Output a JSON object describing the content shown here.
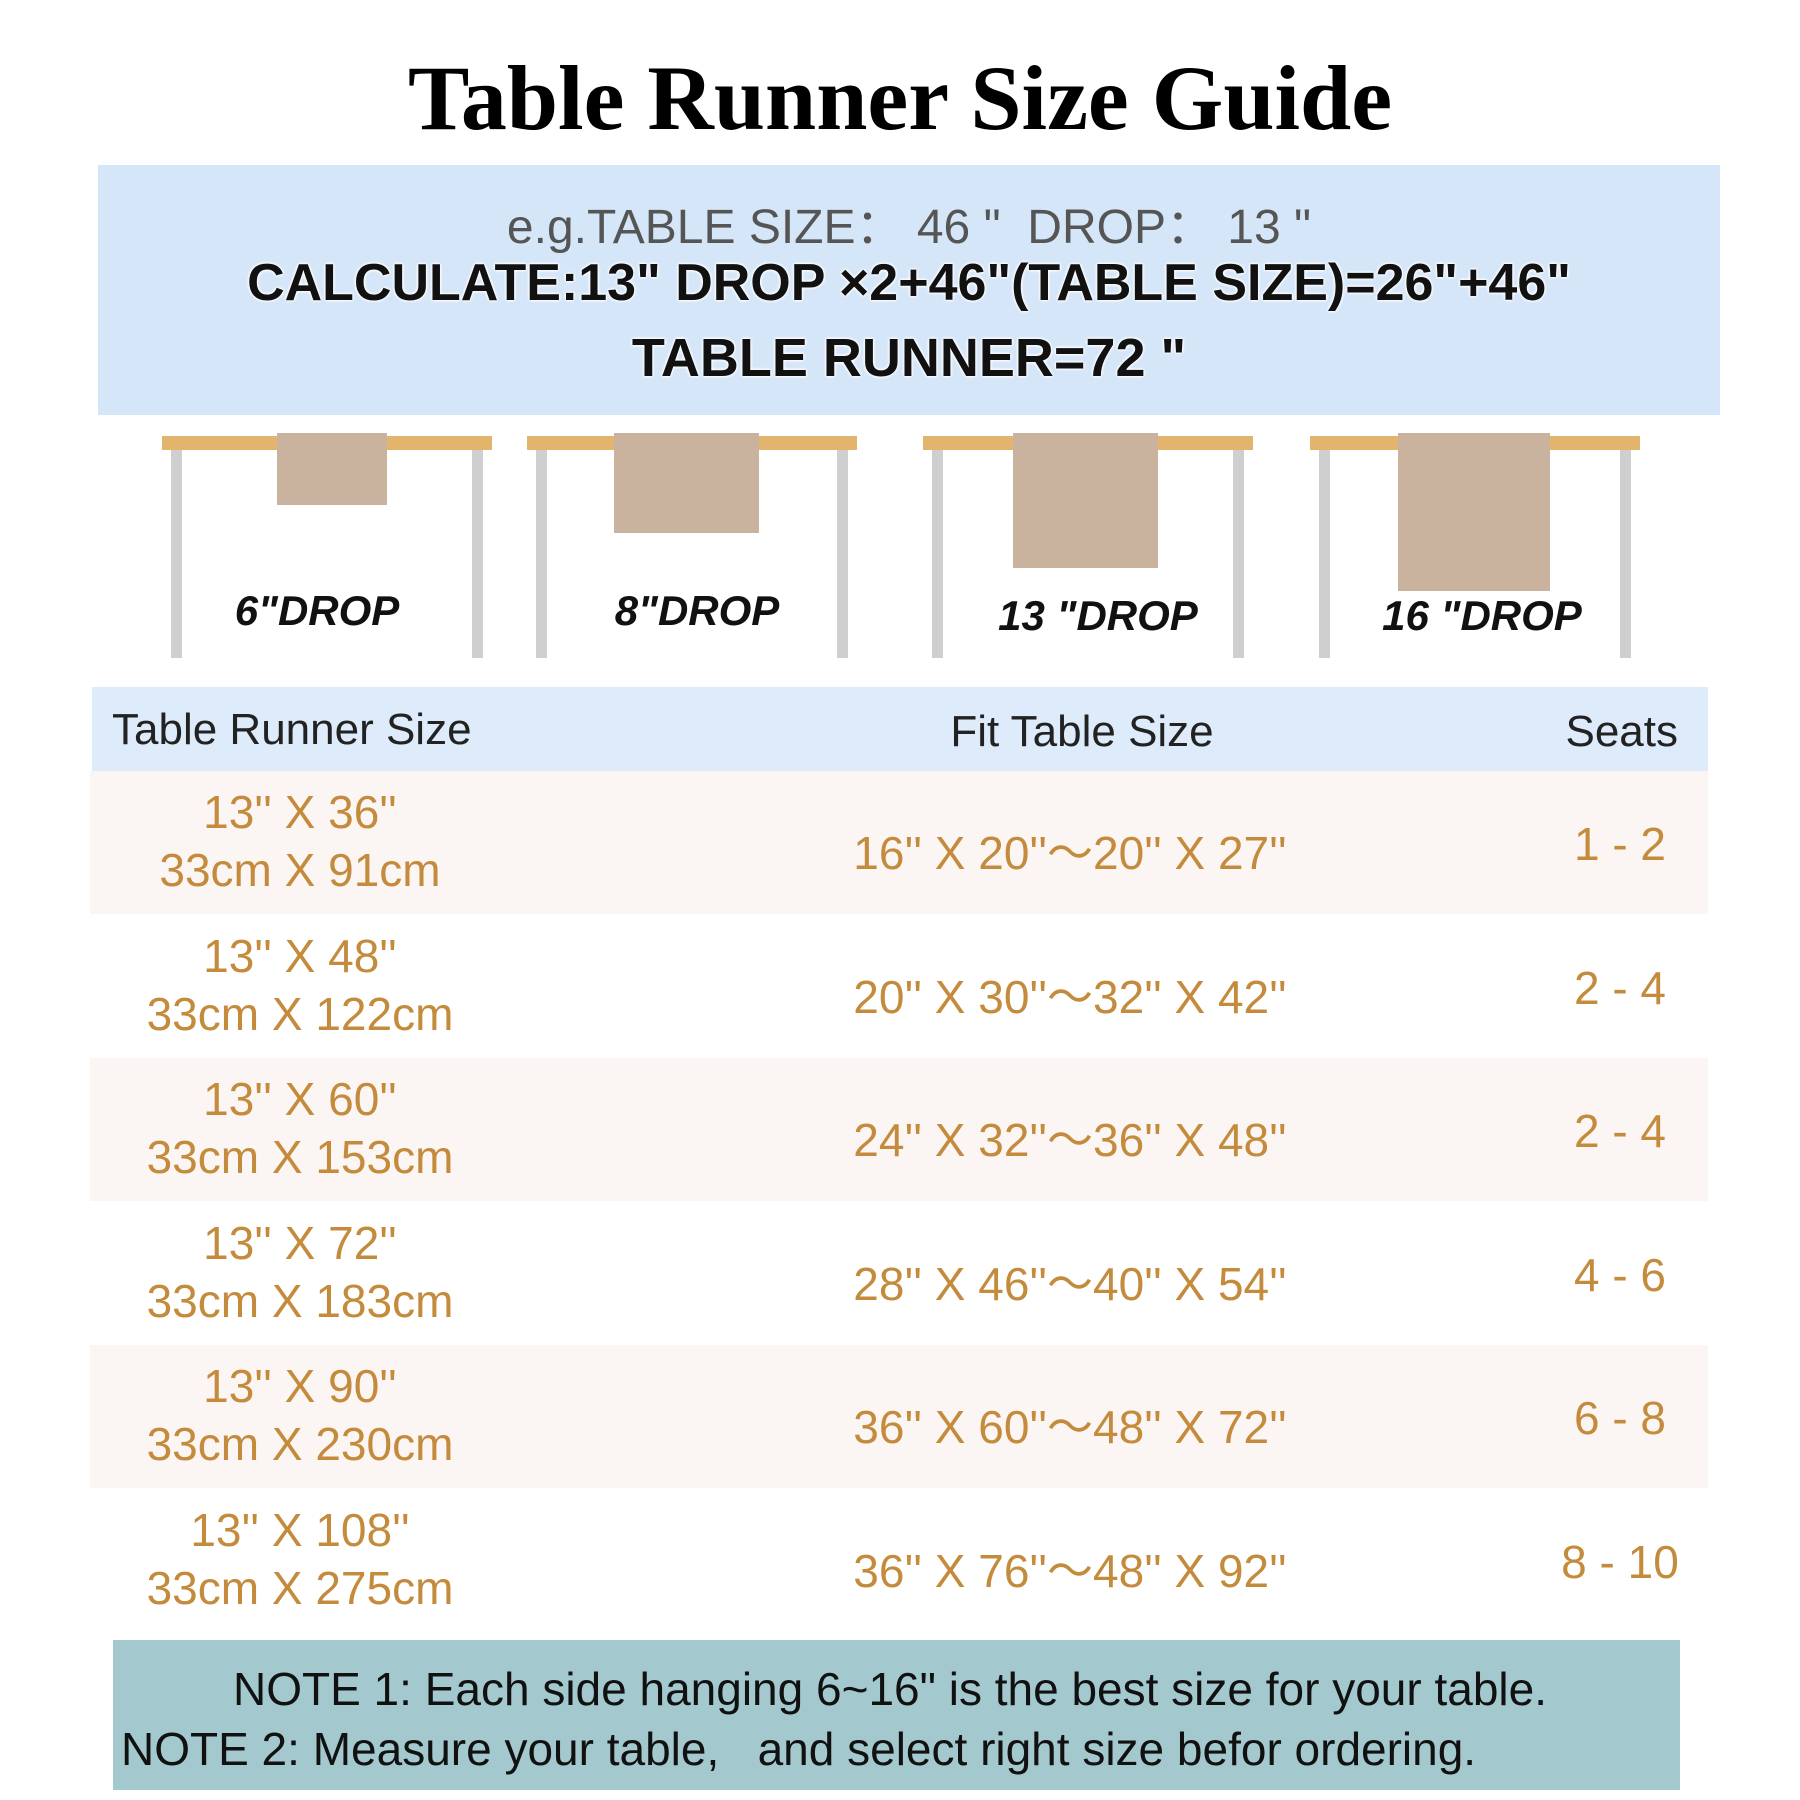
{
  "title": "Table Runner Size Guide",
  "example": {
    "line1": "e.g.TABLE SIZE： 46 \"  DROP： 13 \"",
    "line2": "CALCULATE:13\" DROP ×2+46\"(TABLE SIZE)=26\"+46\"",
    "line3": "TABLE RUNNER=72 \""
  },
  "drops": [
    "6\"DROP",
    "8\"DROP",
    "13 \"DROP",
    "16 \"DROP"
  ],
  "table": {
    "headers": [
      "Table Runner Size",
      "Fit Table Size",
      "Seats"
    ],
    "rows": [
      [
        "13'' X 36''",
        "33cm X 91cm",
        "16'' X 20''～20'' X 27''",
        "1 - 2"
      ],
      [
        "13'' X 48''",
        "33cm X 122cm",
        "20'' X 30''～32'' X 42''",
        "2 - 4"
      ],
      [
        "13'' X 60''",
        "33cm X 153cm",
        "24'' X 32''～36'' X 48''",
        "2 - 4"
      ],
      [
        "13'' X 72''",
        "33cm X 183cm",
        "28'' X 46''～40'' X 54''",
        "4 - 6"
      ],
      [
        "13'' X 90''",
        "33cm X 230cm",
        "36'' X 60''～48'' X 72''",
        "6 - 8"
      ],
      [
        "13'' X 108''",
        "33cm X 275cm",
        "36'' X 76''～48'' X 92''",
        "8 - 10"
      ]
    ]
  },
  "notes": [
    "NOTE 1: Each side hanging 6~16\" is the best size for your table.",
    "NOTE 2: Measure your table,   and select right size befor ordering."
  ]
}
